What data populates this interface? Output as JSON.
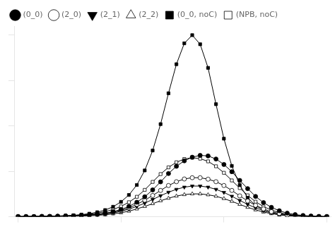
{
  "chart_data": {
    "type": "line",
    "x": [
      0,
      1,
      2,
      3,
      4,
      5,
      6,
      7,
      8,
      9,
      10,
      11,
      12,
      13,
      14,
      15,
      16,
      17,
      18,
      19,
      20,
      21,
      22,
      23,
      24,
      25,
      26,
      27,
      28,
      29,
      30,
      31,
      32,
      33,
      34,
      35,
      36,
      37,
      38,
      39
    ],
    "series": [
      {
        "name": "(0_0)",
        "color": "#000000",
        "marker": "circle",
        "values": [
          0.001,
          0.001,
          0.001,
          0.002,
          0.002,
          0.003,
          0.004,
          0.005,
          0.007,
          0.01,
          0.014,
          0.02,
          0.028,
          0.04,
          0.057,
          0.08,
          0.11,
          0.148,
          0.192,
          0.238,
          0.278,
          0.308,
          0.328,
          0.338,
          0.335,
          0.318,
          0.288,
          0.248,
          0.2,
          0.155,
          0.112,
          0.078,
          0.052,
          0.033,
          0.02,
          0.012,
          0.007,
          0.004,
          0.002,
          0.001
        ]
      },
      {
        "name": "(2_0)",
        "color": "#000000",
        "marker": "open_circle",
        "values": [
          0.001,
          0.001,
          0.001,
          0.002,
          0.002,
          0.003,
          0.004,
          0.005,
          0.007,
          0.009,
          0.013,
          0.018,
          0.025,
          0.035,
          0.049,
          0.068,
          0.091,
          0.117,
          0.145,
          0.172,
          0.193,
          0.208,
          0.215,
          0.215,
          0.207,
          0.193,
          0.172,
          0.145,
          0.115,
          0.087,
          0.063,
          0.043,
          0.028,
          0.018,
          0.01,
          0.006,
          0.004,
          0.002,
          0.001,
          0.001
        ]
      },
      {
        "name": "(2_1)",
        "color": "#000000",
        "marker": "triangle_down",
        "values": [
          0.001,
          0.001,
          0.001,
          0.001,
          0.002,
          0.002,
          0.003,
          0.004,
          0.006,
          0.008,
          0.011,
          0.015,
          0.021,
          0.03,
          0.042,
          0.057,
          0.075,
          0.095,
          0.116,
          0.135,
          0.151,
          0.163,
          0.169,
          0.169,
          0.163,
          0.151,
          0.134,
          0.113,
          0.09,
          0.068,
          0.049,
          0.034,
          0.022,
          0.014,
          0.008,
          0.005,
          0.003,
          0.002,
          0.001,
          0.001
        ]
      },
      {
        "name": "(2_2)",
        "color": "#000000",
        "marker": "open_triangle_up",
        "values": [
          0.001,
          0.001,
          0.001,
          0.001,
          0.001,
          0.002,
          0.002,
          0.003,
          0.004,
          0.006,
          0.008,
          0.011,
          0.016,
          0.022,
          0.031,
          0.043,
          0.057,
          0.072,
          0.088,
          0.102,
          0.114,
          0.122,
          0.126,
          0.126,
          0.121,
          0.113,
          0.1,
          0.085,
          0.068,
          0.052,
          0.038,
          0.026,
          0.017,
          0.011,
          0.006,
          0.004,
          0.002,
          0.001,
          0.001,
          0.0
        ]
      },
      {
        "name": "(0_0, noC)",
        "color": "#000000",
        "marker": "square",
        "values": [
          0.001,
          0.001,
          0.002,
          0.002,
          0.003,
          0.004,
          0.006,
          0.008,
          0.012,
          0.017,
          0.025,
          0.037,
          0.055,
          0.082,
          0.12,
          0.175,
          0.255,
          0.365,
          0.51,
          0.68,
          0.84,
          0.955,
          1.0,
          0.95,
          0.82,
          0.62,
          0.43,
          0.28,
          0.175,
          0.105,
          0.062,
          0.036,
          0.021,
          0.012,
          0.007,
          0.004,
          0.002,
          0.001,
          0.001,
          0.0
        ]
      },
      {
        "name": "(NPB, noC)",
        "color": "#000000",
        "marker": "open_square",
        "values": [
          0.001,
          0.001,
          0.002,
          0.002,
          0.003,
          0.004,
          0.005,
          0.007,
          0.01,
          0.014,
          0.02,
          0.028,
          0.04,
          0.057,
          0.08,
          0.11,
          0.148,
          0.192,
          0.235,
          0.272,
          0.3,
          0.318,
          0.325,
          0.32,
          0.305,
          0.278,
          0.242,
          0.2,
          0.158,
          0.118,
          0.083,
          0.056,
          0.037,
          0.023,
          0.014,
          0.008,
          0.005,
          0.003,
          0.001,
          0.001
        ]
      }
    ],
    "xlim": [
      -0.5,
      39.5
    ],
    "xticks": [
      0,
      13,
      26,
      39
    ],
    "ylim": [
      0,
      1.05
    ],
    "yticks": [
      0,
      0.25,
      0.5,
      0.75,
      1.0
    ],
    "tick_labels": false,
    "grid": false,
    "legend": "upper left"
  }
}
